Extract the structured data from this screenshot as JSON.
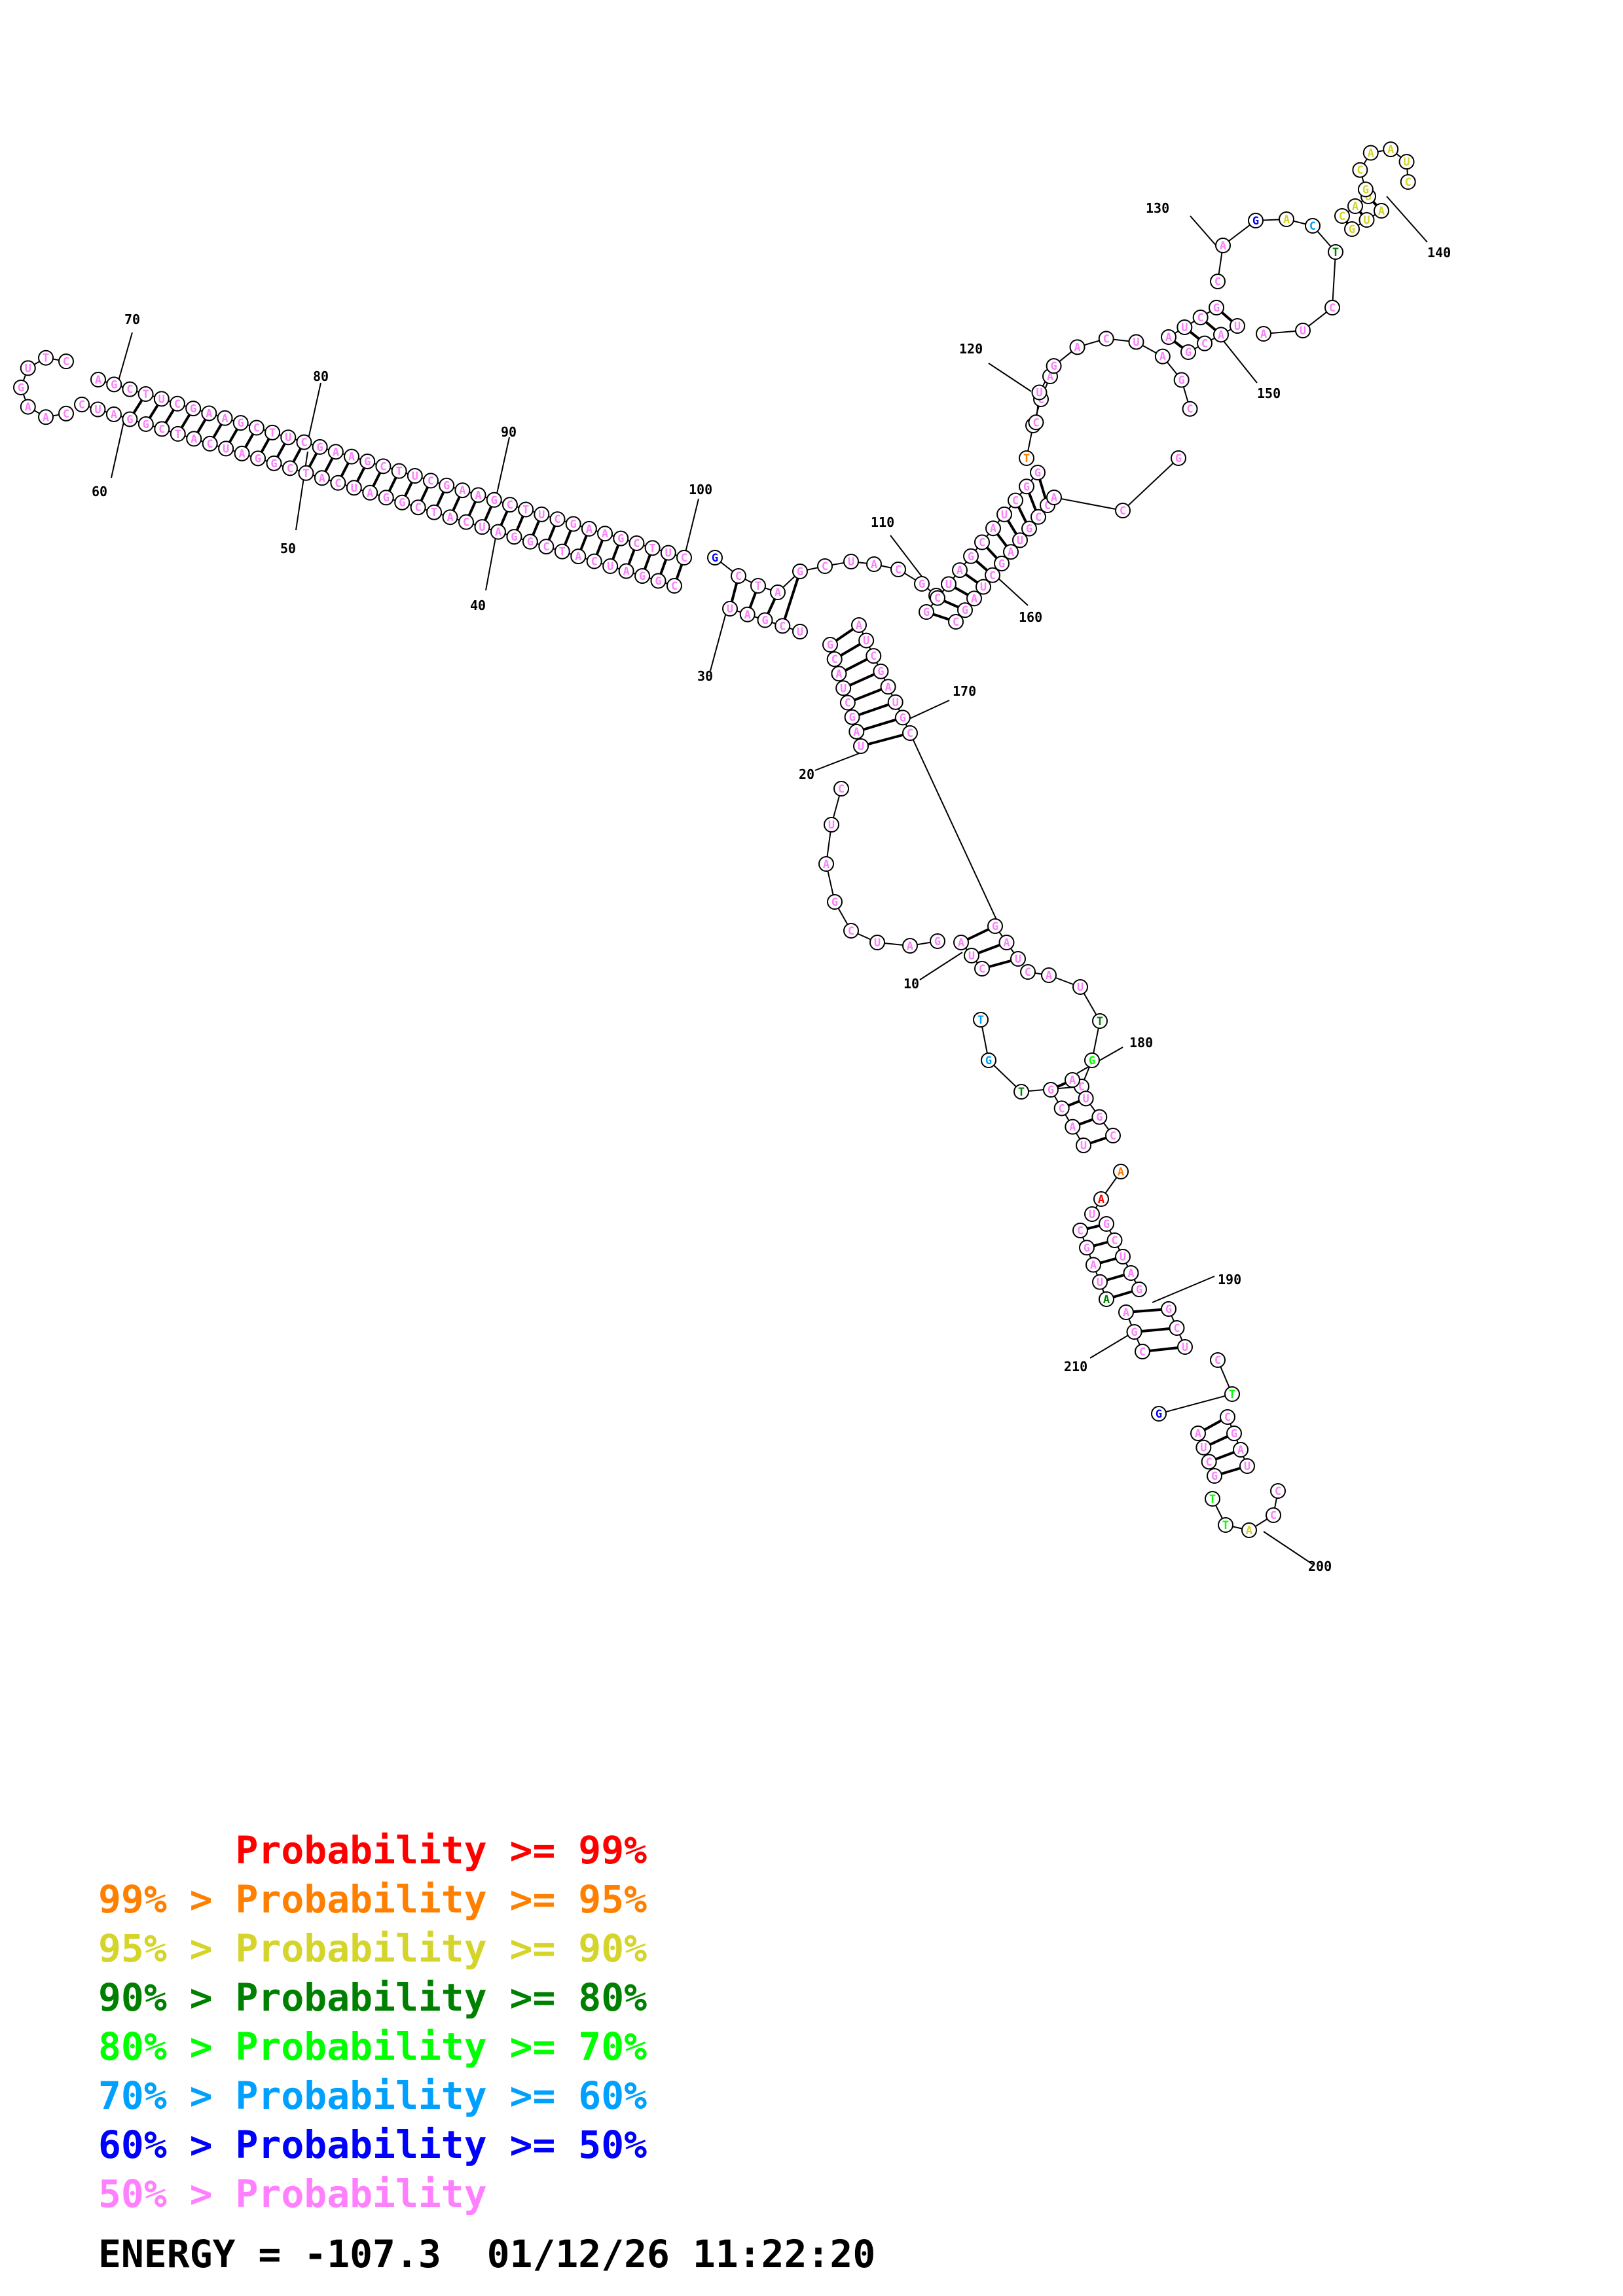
{
  "position_labels": [
    "10",
    "20",
    "30",
    "40",
    "50",
    "60",
    "70",
    "80",
    "90",
    "100",
    "110",
    "120",
    "130",
    "140",
    "150",
    "160",
    "170",
    "180",
    "190",
    "200",
    "210"
  ],
  "colors": {
    "p99": "#ff0000",
    "p95": "#ff8000",
    "p90": "#d4d42a",
    "p80": "#008000",
    "p70": "#00ff00",
    "p60": "#00a0ff",
    "p50": "#0000ff",
    "below50": "#ff80ff"
  },
  "legend": [
    {
      "text": "      Probability >= 99%",
      "color": "#ff0000"
    },
    {
      "text": "99% > Probability >= 95%",
      "color": "#ff8000"
    },
    {
      "text": "95% > Probability >= 90%",
      "color": "#d4d42a"
    },
    {
      "text": "90% > Probability >= 80%",
      "color": "#008000"
    },
    {
      "text": "80% > Probability >= 70%",
      "color": "#00ff00"
    },
    {
      "text": "70% > Probability >= 60%",
      "color": "#00a0ff"
    },
    {
      "text": "60% > Probability >= 50%",
      "color": "#0000ff"
    },
    {
      "text": "50% > Probability",
      "color": "#ff80ff"
    }
  ],
  "energy_line": "ENERGY = -107.3  01/12/26 11:22:20"
}
